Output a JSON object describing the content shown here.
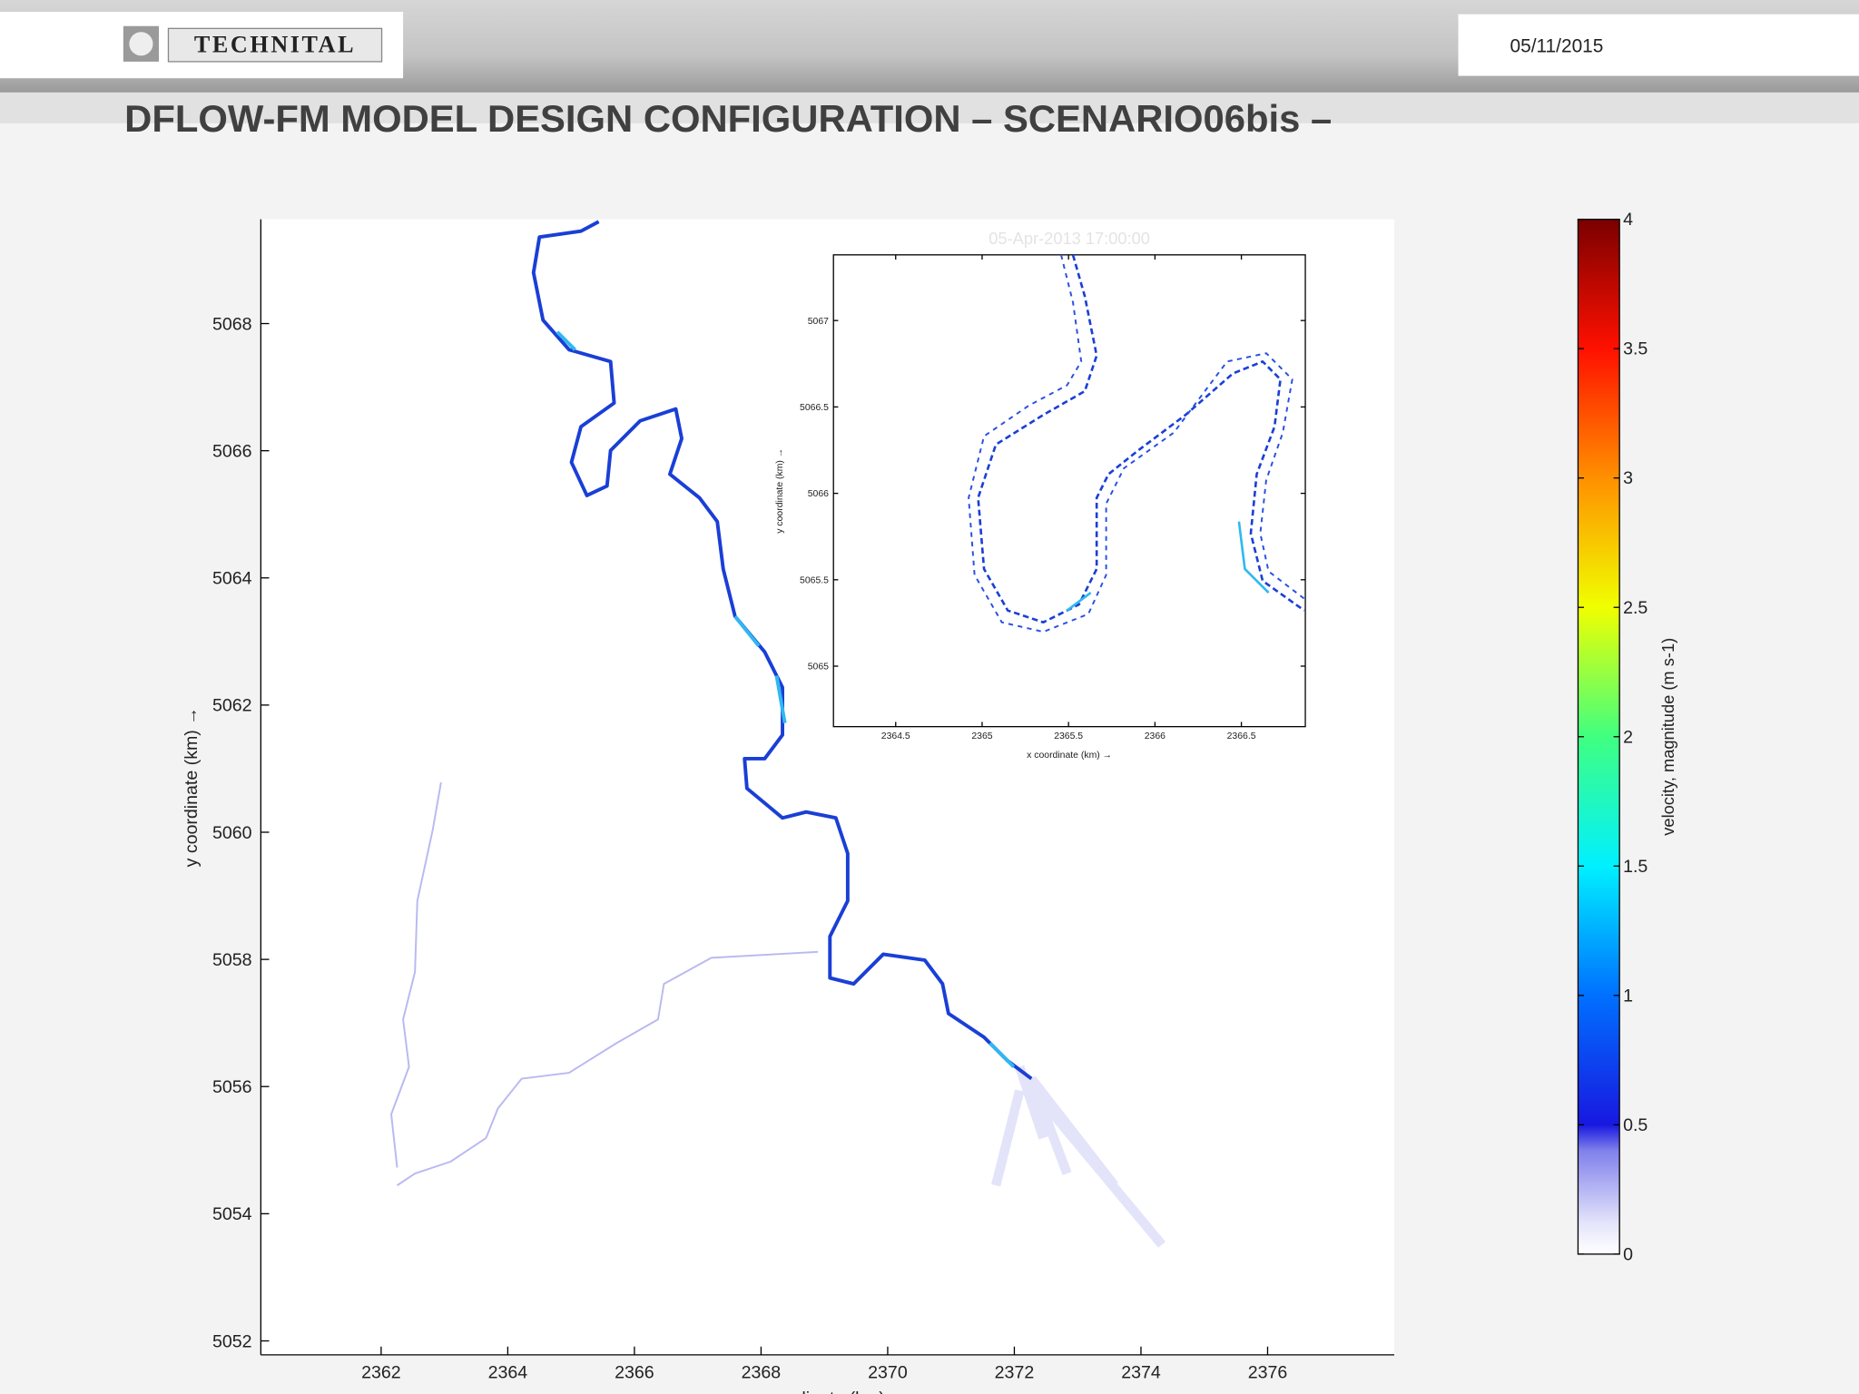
{
  "header": {
    "logo": "TECHNITAL",
    "date": "05/11/2015",
    "title": "DFLOW-FM MODEL DESIGN CONFIGURATION – SCENARIO06bis –"
  },
  "chart_data": [
    {
      "type": "map",
      "xlabel": "x coordinate (km) →",
      "ylabel": "y coordinate (km) →",
      "xlim": [
        2360.1,
        2378
      ],
      "xticks": [
        2362,
        2364,
        2366,
        2368,
        2370,
        2372,
        2374,
        2376
      ],
      "ylim": [
        5051.78,
        5069.64
      ],
      "yticks": [
        5052,
        5054,
        5056,
        5058,
        5060,
        5062,
        5064,
        5066,
        5068
      ]
    },
    {
      "type": "map",
      "title": "05-Apr-2013 17:00:00",
      "xlabel": "x coordinate (km) →",
      "ylabel": "y coordinate (km) →",
      "xlim": [
        2364.14,
        2366.87
      ],
      "xticks": [
        2364.5,
        2365,
        2365.5,
        2366,
        2366.5
      ],
      "ylim": [
        5064.65,
        5067.38
      ],
      "yticks": [
        5065,
        5065.5,
        5066,
        5066.5,
        5067
      ]
    },
    {
      "type": "colorbar",
      "label": "velocity, magnitude (m s-1)",
      "ylim": [
        0,
        4
      ],
      "yticks": [
        0,
        0.5,
        1,
        1.5,
        2,
        2.5,
        3,
        3.5,
        4
      ]
    }
  ]
}
